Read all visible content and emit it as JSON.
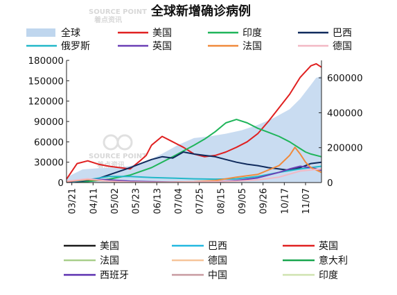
{
  "watermark": {
    "text_en": "SOURCE POINT",
    "text_cn": "着点资讯"
  },
  "chart_data": {
    "type": "line",
    "title": "全球新增确诊病例",
    "x_ticks": [
      "03/21",
      "04/11",
      "05/02",
      "05/23",
      "06/13",
      "07/04",
      "07/25",
      "08/15",
      "09/05",
      "09/26",
      "10/17",
      "11/07"
    ],
    "y_left": {
      "ticks": [
        0,
        30000,
        60000,
        90000,
        120000,
        150000,
        180000
      ],
      "range": [
        0,
        180000
      ]
    },
    "y_right": {
      "ticks": [
        0,
        200000,
        400000,
        600000
      ],
      "range": [
        0,
        700000
      ]
    },
    "legend_top": [
      {
        "label": "全球",
        "color": "#bfd6ee",
        "style": "area"
      },
      {
        "label": "美国",
        "color": "#e02020",
        "style": "line"
      },
      {
        "label": "印度",
        "color": "#1fb55a",
        "style": "line"
      },
      {
        "label": "巴西",
        "color": "#0f2a5c",
        "style": "line"
      },
      {
        "label": "俄罗斯",
        "color": "#22b8c9",
        "style": "line"
      },
      {
        "label": "英国",
        "color": "#6a3fb5",
        "style": "line"
      },
      {
        "label": "法国",
        "color": "#f08a3c",
        "style": "line"
      },
      {
        "label": "德国",
        "color": "#f2b8c4",
        "style": "line"
      }
    ],
    "legend_bottom": [
      {
        "label": "美国",
        "color": "#1a1a1a"
      },
      {
        "label": "巴西",
        "color": "#22b8e0"
      },
      {
        "label": "英国",
        "color": "#e02020"
      },
      {
        "label": "法国",
        "color": "#a8cf8a"
      },
      {
        "label": "德国",
        "color": "#f6c59a"
      },
      {
        "label": "意大利",
        "color": "#19a64f"
      },
      {
        "label": "西班牙",
        "color": "#5b2fb0"
      },
      {
        "label": "中国",
        "color": "#c79aa0"
      },
      {
        "label": "印度",
        "color": "#cfe3b0"
      }
    ],
    "series": [
      {
        "name": "全球",
        "axis": "right",
        "color": "#bfd6ee",
        "x": [
          0,
          3,
          6,
          9,
          12,
          15,
          18,
          21,
          24,
          27,
          30,
          33,
          36,
          39,
          42,
          44,
          46,
          47,
          48
        ],
        "values": [
          30000,
          75000,
          82000,
          85000,
          95000,
          120000,
          165000,
          215000,
          255000,
          265000,
          280000,
          300000,
          330000,
          370000,
          420000,
          480000,
          560000,
          600000,
          610000
        ]
      },
      {
        "name": "美国",
        "axis": "left",
        "color": "#e02020",
        "x": [
          0,
          2,
          4,
          6,
          8,
          10,
          12,
          14,
          15,
          16,
          18,
          20,
          22,
          24,
          26,
          28,
          30,
          32,
          34,
          36,
          38,
          40,
          42,
          44,
          46,
          47,
          48
        ],
        "values": [
          5000,
          28000,
          32000,
          27000,
          24000,
          22000,
          20000,
          33000,
          40000,
          55000,
          68000,
          60000,
          52000,
          42000,
          38000,
          40000,
          45000,
          52000,
          60000,
          72000,
          90000,
          110000,
          130000,
          155000,
          172000,
          175000,
          170000
        ]
      },
      {
        "name": "印度",
        "axis": "left",
        "color": "#1fb55a",
        "x": [
          0,
          4,
          8,
          12,
          16,
          20,
          24,
          26,
          28,
          30,
          32,
          34,
          36,
          38,
          40,
          42,
          44,
          45,
          46,
          48
        ],
        "values": [
          500,
          1500,
          5000,
          11000,
          22000,
          38000,
          55000,
          64000,
          75000,
          88000,
          93000,
          88000,
          80000,
          74000,
          68000,
          60000,
          50000,
          45000,
          42000,
          38000
        ]
      },
      {
        "name": "巴西",
        "axis": "left",
        "color": "#0f2a5c",
        "x": [
          0,
          3,
          6,
          9,
          12,
          14,
          16,
          18,
          20,
          22,
          24,
          26,
          28,
          30,
          32,
          34,
          36,
          38,
          40,
          42,
          44,
          46,
          48
        ],
        "values": [
          500,
          2000,
          6000,
          14000,
          22000,
          28000,
          34000,
          38000,
          36000,
          45000,
          42000,
          40000,
          38000,
          34000,
          30000,
          27000,
          25000,
          22000,
          20000,
          18000,
          22000,
          28000,
          30000
        ]
      },
      {
        "name": "俄罗斯",
        "axis": "left",
        "color": "#22b8c9",
        "x": [
          0,
          4,
          8,
          12,
          16,
          20,
          24,
          28,
          32,
          36,
          40,
          44,
          48
        ],
        "values": [
          300,
          4000,
          9000,
          9000,
          7500,
          6500,
          5500,
          5000,
          5500,
          9000,
          15000,
          20000,
          24000
        ]
      },
      {
        "name": "英国",
        "axis": "left",
        "color": "#6a3fb5",
        "x": [
          0,
          4,
          8,
          12,
          16,
          20,
          24,
          28,
          32,
          36,
          40,
          42,
          44,
          46,
          48
        ],
        "values": [
          700,
          5000,
          4000,
          2000,
          1200,
          800,
          900,
          1200,
          3000,
          7000,
          15000,
          20000,
          24000,
          22000,
          18000
        ]
      },
      {
        "name": "法国",
        "axis": "left",
        "color": "#f08a3c",
        "x": [
          0,
          4,
          8,
          12,
          16,
          20,
          24,
          28,
          32,
          36,
          40,
          42,
          43,
          44,
          45,
          46,
          48
        ],
        "values": [
          1500,
          4500,
          2000,
          800,
          500,
          600,
          1200,
          3000,
          8000,
          12000,
          25000,
          40000,
          52000,
          42000,
          30000,
          22000,
          15000
        ]
      },
      {
        "name": "德国",
        "axis": "left",
        "color": "#f2b8c4",
        "x": [
          0,
          4,
          8,
          12,
          16,
          20,
          24,
          28,
          32,
          36,
          40,
          44,
          48
        ],
        "values": [
          2000,
          5500,
          2000,
          800,
          400,
          500,
          1000,
          1500,
          2000,
          4000,
          8000,
          17000,
          20000
        ]
      }
    ]
  }
}
